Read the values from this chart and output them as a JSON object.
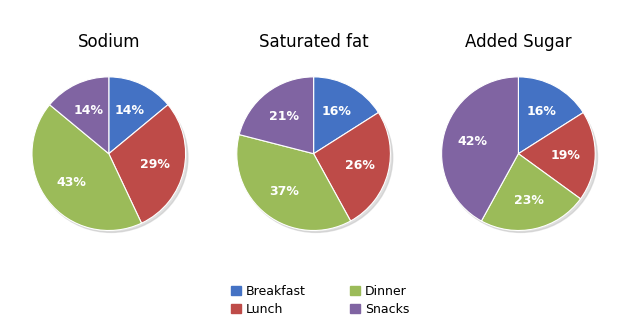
{
  "charts": [
    {
      "title": "Sodium",
      "values": [
        14,
        29,
        43,
        14
      ],
      "labels": [
        "Breakfast",
        "Lunch",
        "Dinner",
        "Snacks"
      ],
      "startangle": 90
    },
    {
      "title": "Saturated fat",
      "values": [
        16,
        26,
        37,
        21
      ],
      "labels": [
        "Breakfast",
        "Lunch",
        "Dinner",
        "Snacks"
      ],
      "startangle": 90
    },
    {
      "title": "Added Sugar",
      "values": [
        16,
        19,
        23,
        42
      ],
      "labels": [
        "Breakfast",
        "Lunch",
        "Dinner",
        "Snacks"
      ],
      "startangle": 90
    }
  ],
  "colors": {
    "Breakfast": "#4472C4",
    "Lunch": "#BE4B48",
    "Dinner": "#9BBB59",
    "Snacks": "#8064A2"
  },
  "legend_labels": [
    "Breakfast",
    "Lunch",
    "Dinner",
    "Snacks"
  ],
  "background_color": "#FFFFFF",
  "title_fontsize": 12,
  "label_fontsize": 9
}
